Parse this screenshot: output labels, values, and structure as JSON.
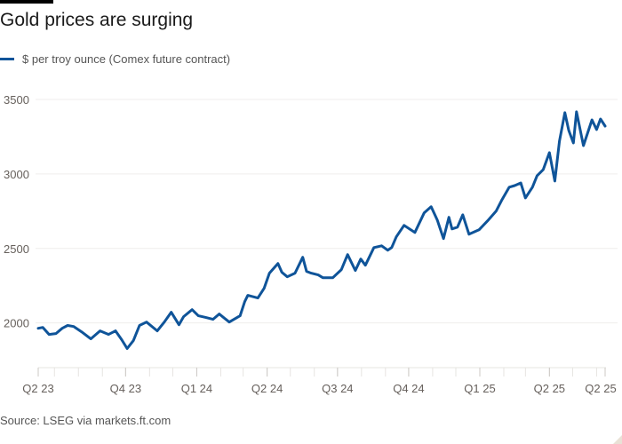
{
  "chart_data": {
    "type": "line",
    "title": "Gold prices are surging",
    "xlabel": "",
    "ylabel": "",
    "xlim": [
      "2023-06-10",
      "2025-06-12"
    ],
    "ylim": [
      1700,
      3500
    ],
    "grid": true,
    "y_ticks": [
      2000,
      2500,
      3000,
      3500
    ],
    "x_ticks": [
      {
        "label": "Q2 23",
        "date": "2023-06-10"
      },
      {
        "label": "Q4 23",
        "date": "2023-10-01"
      },
      {
        "label": "Q1 24",
        "date": "2024-01-01"
      },
      {
        "label": "Q2 24",
        "date": "2024-04-01"
      },
      {
        "label": "Q3 24",
        "date": "2024-07-01"
      },
      {
        "label": "Q4 24",
        "date": "2024-10-01"
      },
      {
        "label": "Q1 25",
        "date": "2025-01-01"
      },
      {
        "label": "Q2 25",
        "date": "2025-04-01"
      },
      {
        "label": "Q2 25",
        "date": "2025-06-12"
      }
    ],
    "legend": "top-left",
    "series": [
      {
        "name": "$ per troy ounce (Comex future contract)",
        "color": "#0f5499",
        "x": [
          "2023-06-10",
          "2023-06-16",
          "2023-06-24",
          "2023-07-03",
          "2023-07-11",
          "2023-07-18",
          "2023-07-26",
          "2023-08-05",
          "2023-08-17",
          "2023-08-29",
          "2023-09-09",
          "2023-09-18",
          "2023-09-26",
          "2023-10-03",
          "2023-10-11",
          "2023-10-19",
          "2023-10-28",
          "2023-11-11",
          "2023-11-20",
          "2023-11-29",
          "2023-12-09",
          "2023-12-15",
          "2023-12-26",
          "2024-01-03",
          "2024-01-13",
          "2024-01-22",
          "2024-01-30",
          "2024-02-12",
          "2024-02-26",
          "2024-03-03",
          "2024-03-07",
          "2024-03-20",
          "2024-03-28",
          "2024-04-04",
          "2024-04-15",
          "2024-04-20",
          "2024-04-27",
          "2024-05-07",
          "2024-05-17",
          "2024-05-22",
          "2024-05-28",
          "2024-06-06",
          "2024-06-12",
          "2024-06-25",
          "2024-07-06",
          "2024-07-14",
          "2024-07-24",
          "2024-07-31",
          "2024-08-06",
          "2024-08-17",
          "2024-08-27",
          "2024-09-04",
          "2024-09-09",
          "2024-09-15",
          "2024-09-25",
          "2024-10-09",
          "2024-10-21",
          "2024-10-30",
          "2024-11-07",
          "2024-11-15",
          "2024-11-22",
          "2024-11-26",
          "2024-12-03",
          "2024-12-10",
          "2024-12-18",
          "2024-12-31",
          "2025-01-11",
          "2025-01-22",
          "2025-01-29",
          "2025-02-08",
          "2025-02-15",
          "2025-02-23",
          "2025-03-01",
          "2025-03-10",
          "2025-03-16",
          "2025-03-24",
          "2025-04-01",
          "2025-04-08",
          "2025-04-14",
          "2025-04-21",
          "2025-04-26",
          "2025-05-02",
          "2025-05-06",
          "2025-05-15",
          "2025-05-26",
          "2025-06-01",
          "2025-06-06",
          "2025-06-12"
        ],
        "values": [
          1964,
          1970,
          1923,
          1929,
          1964,
          1983,
          1976,
          1941,
          1893,
          1947,
          1923,
          1947,
          1887,
          1828,
          1881,
          1983,
          2006,
          1947,
          2006,
          2072,
          1988,
          2042,
          2089,
          2048,
          2036,
          2024,
          2060,
          2006,
          2048,
          2143,
          2185,
          2167,
          2232,
          2334,
          2399,
          2340,
          2310,
          2334,
          2441,
          2346,
          2334,
          2322,
          2304,
          2304,
          2358,
          2459,
          2352,
          2429,
          2387,
          2506,
          2518,
          2488,
          2506,
          2578,
          2655,
          2607,
          2738,
          2780,
          2691,
          2566,
          2709,
          2631,
          2643,
          2726,
          2595,
          2625,
          2685,
          2750,
          2821,
          2911,
          2922,
          2940,
          2839,
          2911,
          2988,
          3030,
          3143,
          2952,
          3220,
          3411,
          3292,
          3208,
          3417,
          3190,
          3363,
          3298,
          3369,
          3321
        ]
      }
    ],
    "source": "Source: LSEG via markets.ft.com"
  }
}
